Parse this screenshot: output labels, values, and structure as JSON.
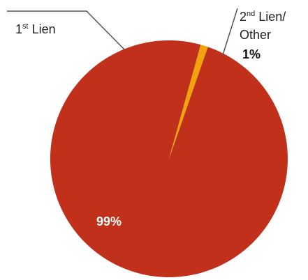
{
  "chart_data": {
    "type": "pie",
    "slices": [
      {
        "label_main": "1",
        "label_sup": "st",
        "label_rest": " Lien",
        "value": 99,
        "value_label": "99%",
        "color": "#c0301a",
        "value_color": "#ffffff"
      },
      {
        "label_main": "2",
        "label_sup": "nd",
        "label_rest": " Lien/",
        "label_line2": "Other",
        "value": 1,
        "value_label": "1%",
        "color": "#f0a30a",
        "value_color": "#111111"
      }
    ],
    "leader_line_color": "#555555"
  }
}
